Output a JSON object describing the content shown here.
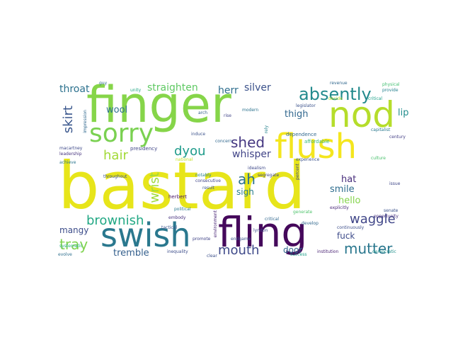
{
  "words": [
    {
      "text": "bastard",
      "color": "#e7e51a"
    },
    {
      "text": "finger",
      "color": "#86d549"
    },
    {
      "text": "fling",
      "color": "#45085b"
    },
    {
      "text": "swish",
      "color": "#2a788e"
    },
    {
      "text": "flush",
      "color": "#f4e61e"
    },
    {
      "text": "nod",
      "color": "#b5dd2b"
    },
    {
      "text": "sorry",
      "color": "#7ad151"
    },
    {
      "text": "absently",
      "color": "#238a8d"
    },
    {
      "text": "mouth",
      "color": "#3f4a8a"
    },
    {
      "text": "mutter",
      "color": "#2a778e"
    },
    {
      "text": "waggle",
      "color": "#404688"
    },
    {
      "text": "brownish",
      "color": "#22a884"
    },
    {
      "text": "tray",
      "color": "#7fd34e"
    },
    {
      "text": "shed",
      "color": "#453781"
    },
    {
      "text": "skirt",
      "color": "#39568c"
    },
    {
      "text": "hair",
      "color": "#a2da37"
    },
    {
      "text": "dyou",
      "color": "#1e9b8a"
    },
    {
      "text": "whisper",
      "color": "#414487"
    },
    {
      "text": "wrist",
      "color": "#9fda3a"
    },
    {
      "text": "ah",
      "color": "#2c728e"
    },
    {
      "text": "tremble",
      "color": "#35608d"
    },
    {
      "text": "throat",
      "color": "#2c718e"
    },
    {
      "text": "straighten",
      "color": "#5ec962"
    },
    {
      "text": "herr",
      "color": "#2e6e8e"
    },
    {
      "text": "silver",
      "color": "#3b528b"
    },
    {
      "text": "wool",
      "color": "#2d708e"
    },
    {
      "text": "thigh",
      "color": "#31678e"
    },
    {
      "text": "lip",
      "color": "#228d8d"
    },
    {
      "text": "hat",
      "color": "#472d7b"
    },
    {
      "text": "smile",
      "color": "#2e6d8e"
    },
    {
      "text": "hello",
      "color": "#84d44b"
    },
    {
      "text": "sigh",
      "color": "#287d8e"
    },
    {
      "text": "door",
      "color": "#31678e"
    },
    {
      "text": "fuck",
      "color": "#3e4c8a"
    },
    {
      "text": "mangy",
      "color": "#3d4d8a"
    },
    {
      "text": "revenue",
      "color": "#31688e"
    },
    {
      "text": "physical",
      "color": "#43bf71"
    },
    {
      "text": "provide",
      "color": "#26828e"
    },
    {
      "text": "decide",
      "color": "#b8de29"
    },
    {
      "text": "critical",
      "color": "#1fa088"
    },
    {
      "text": "legislator",
      "color": "#3b528b"
    },
    {
      "text": "capitalist",
      "color": "#2a788e"
    },
    {
      "text": "century",
      "color": "#433e85"
    },
    {
      "text": "dependence",
      "color": "#31688e"
    },
    {
      "text": "affordable",
      "color": "#35b779"
    },
    {
      "text": "culture",
      "color": "#4ac16d"
    },
    {
      "text": "presidency",
      "color": "#404688"
    },
    {
      "text": "macartney",
      "color": "#3e4989"
    },
    {
      "text": "leadership",
      "color": "#46337e"
    },
    {
      "text": "modern",
      "color": "#2c728e"
    },
    {
      "text": "notably",
      "color": "#27808e"
    },
    {
      "text": "throughout",
      "color": "#3b518b"
    },
    {
      "text": "herbert",
      "color": "#481467"
    },
    {
      "text": "political",
      "color": "#2a788e"
    },
    {
      "text": "embody",
      "color": "#46307e"
    },
    {
      "text": "segregate",
      "color": "#404588"
    },
    {
      "text": "experience",
      "color": "#3b528b"
    },
    {
      "text": "explicitly",
      "color": "#482878"
    },
    {
      "text": "senate",
      "color": "#3b528b"
    },
    {
      "text": "opportunity",
      "color": "#46307e"
    },
    {
      "text": "lyndon",
      "color": "#3e4a89"
    },
    {
      "text": "critical",
      "color": "#31688e"
    },
    {
      "text": "continuously",
      "color": "#3d4e8a"
    },
    {
      "text": "democratic",
      "color": "#21918c"
    },
    {
      "text": "institution",
      "color": "#482173"
    },
    {
      "text": "inequality",
      "color": "#3d4d8a"
    },
    {
      "text": "success",
      "color": "#1f9e89"
    },
    {
      "text": "evolve",
      "color": "#2e6f8e"
    },
    {
      "text": "systematic",
      "color": "#29af7f"
    },
    {
      "text": "promote",
      "color": "#414487"
    },
    {
      "text": "endgame",
      "color": "#3b528b"
    },
    {
      "text": "percent",
      "color": "#3f4889"
    },
    {
      "text": "issue",
      "color": "#3f4788"
    },
    {
      "text": "result",
      "color": "#39568c"
    },
    {
      "text": "induce",
      "color": "#3b528b"
    },
    {
      "text": "concern",
      "color": "#31688e"
    },
    {
      "text": "clear",
      "color": "#3c4f8a"
    },
    {
      "text": "generate",
      "color": "#4ec36b"
    },
    {
      "text": "develop",
      "color": "#31688e"
    },
    {
      "text": "rely",
      "color": "#26828e"
    },
    {
      "text": "rise",
      "color": "#404588"
    },
    {
      "text": "impression",
      "color": "#31688e"
    },
    {
      "text": "guy",
      "color": "#2e6e8e"
    },
    {
      "text": "unity",
      "color": "#22a785"
    },
    {
      "text": "arch",
      "color": "#35608d"
    },
    {
      "text": "environment",
      "color": "#482475"
    },
    {
      "text": "idealism",
      "color": "#3e4989"
    },
    {
      "text": "tactical",
      "color": "#3b528b"
    },
    {
      "text": "achieve",
      "color": "#2a768e"
    },
    {
      "text": "national",
      "color": "#c0df25"
    },
    {
      "text": "consecutive",
      "color": "#404588"
    }
  ]
}
